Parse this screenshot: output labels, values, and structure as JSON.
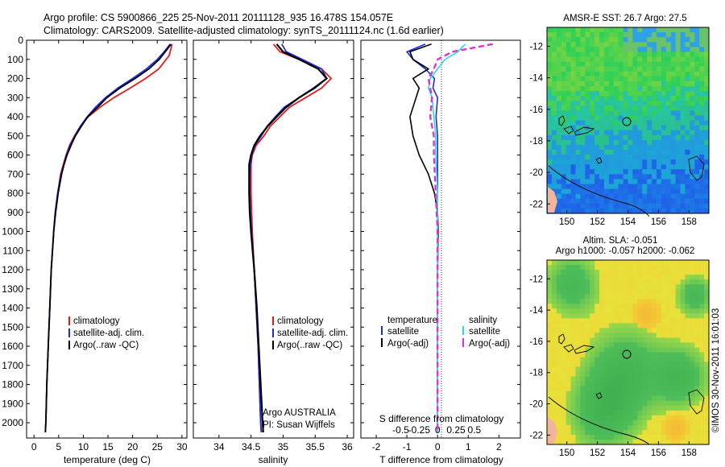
{
  "header": {
    "line1": "Argo profile: CS 5900866_225 25-Nov-2011 20111128_935 16.478S 154.057E",
    "line2": "Climatology: CARS2009. Satellite-adjusted climatology: synTS_20111124.nc (1.6d earlier)"
  },
  "colors": {
    "climatology": "#e41a1c",
    "satellite": "#1f2bd6",
    "argo": "#000000",
    "sal_satellite": "#22dfe6",
    "sal_argo": "#e52fd6"
  },
  "chart_data": [
    {
      "type": "line",
      "id": "temperature",
      "xlabel": "temperature (deg C)",
      "ylabel": "",
      "xlim": [
        -1.5,
        31
      ],
      "ylim": [
        2080,
        0
      ],
      "x_ticks": [
        "0",
        "5",
        "10",
        "15",
        "20",
        "25",
        "30"
      ],
      "x_tick_values": [
        0,
        5,
        10,
        15,
        20,
        25,
        30
      ],
      "y_ticks": [
        "0",
        "100",
        "200",
        "300",
        "400",
        "500",
        "600",
        "700",
        "800",
        "900",
        "1000",
        "1100",
        "1200",
        "1300",
        "1400",
        "1500",
        "1600",
        "1700",
        "1800",
        "1900",
        "2000"
      ],
      "y_tick_values": [
        0,
        100,
        200,
        300,
        400,
        500,
        600,
        700,
        800,
        900,
        1000,
        1100,
        1200,
        1300,
        1400,
        1500,
        1600,
        1700,
        1800,
        1900,
        2000
      ],
      "legend": [
        "climatology",
        "satellite-adj. clim.",
        "Argo(..raw -QC)"
      ],
      "legend_position": "lower-middle",
      "series": [
        {
          "name": "climatology",
          "color": "climatology",
          "depth": [
            20,
            80,
            150,
            200,
            250,
            300,
            350,
            400,
            450,
            500,
            550,
            600,
            700,
            800,
            900,
            1000,
            1200,
            1400,
            1600,
            1800,
            2000,
            2050
          ],
          "values": [
            28,
            27.4,
            25.3,
            22.6,
            19.5,
            16.2,
            13.4,
            11.0,
            9.4,
            8.2,
            7.2,
            6.5,
            5.4,
            4.8,
            4.3,
            4.0,
            3.5,
            3.2,
            2.9,
            2.6,
            2.4,
            2.3
          ]
        },
        {
          "name": "satellite-adj. clim.",
          "color": "satellite",
          "depth": [
            20,
            60,
            100,
            150,
            200,
            250,
            300,
            350,
            400,
            450,
            500,
            550,
            600,
            700,
            800,
            900,
            1000,
            1200,
            1400,
            1600,
            1800,
            2000,
            2050
          ],
          "values": [
            27.6,
            26.4,
            25.0,
            22.8,
            20.0,
            17.0,
            14.5,
            12.5,
            10.8,
            9.4,
            8.3,
            7.3,
            6.6,
            5.5,
            4.8,
            4.3,
            4.0,
            3.5,
            3.2,
            2.9,
            2.6,
            2.4,
            2.3
          ]
        },
        {
          "name": "Argo(..raw -QC)",
          "color": "argo",
          "depth": [
            20,
            60,
            100,
            150,
            200,
            250,
            300,
            350,
            400,
            450,
            500,
            550,
            600,
            650,
            700,
            800,
            900,
            1000,
            1200,
            1400,
            1600,
            1800,
            2000,
            2050
          ],
          "values": [
            27.8,
            26.6,
            25.4,
            23.3,
            20.5,
            17.4,
            14.8,
            12.9,
            10.9,
            9.6,
            8.4,
            7.5,
            6.7,
            6.1,
            5.6,
            4.9,
            4.4,
            4.0,
            3.5,
            3.2,
            2.9,
            2.6,
            2.4,
            2.3
          ]
        }
      ]
    },
    {
      "type": "line",
      "id": "salinity",
      "xlabel": "salinity",
      "ylabel": "",
      "xlim": [
        33.6,
        36.1
      ],
      "ylim": [
        2080,
        0
      ],
      "x_ticks": [
        "34",
        "34.5",
        "35",
        "35.5",
        "36"
      ],
      "x_tick_values": [
        34,
        34.5,
        35,
        35.5,
        36
      ],
      "legend": [
        "climatology",
        "satellite-adj. clim.",
        "Argo(..raw -QC)"
      ],
      "legend_position": "lower-middle",
      "annotation": [
        "Argo AUSTRALIA",
        "PI: Susan Wijffels"
      ],
      "series": [
        {
          "name": "climatology",
          "color": "climatology",
          "depth": [
            20,
            60,
            100,
            150,
            200,
            250,
            300,
            350,
            400,
            450,
            500,
            550,
            600,
            650,
            700,
            800,
            900,
            1000,
            1200,
            1400,
            1600,
            1800,
            2000,
            2050
          ],
          "values": [
            34.85,
            34.95,
            35.25,
            35.6,
            35.75,
            35.6,
            35.35,
            35.1,
            34.95,
            34.8,
            34.7,
            34.58,
            34.52,
            34.5,
            34.5,
            34.5,
            34.51,
            34.52,
            34.55,
            34.58,
            34.61,
            34.63,
            34.65,
            34.66
          ]
        },
        {
          "name": "satellite-adj. clim.",
          "color": "satellite",
          "depth": [
            20,
            60,
            100,
            150,
            200,
            250,
            300,
            350,
            400,
            450,
            500,
            550,
            600,
            650,
            700,
            800,
            900,
            1000,
            1200,
            1400,
            1600,
            1800,
            2000,
            2050
          ],
          "values": [
            34.98,
            35.05,
            35.3,
            35.6,
            35.68,
            35.5,
            35.25,
            35.02,
            34.88,
            34.75,
            34.66,
            34.56,
            34.51,
            34.49,
            34.48,
            34.48,
            34.49,
            34.51,
            34.55,
            34.58,
            34.61,
            34.63,
            34.65,
            34.66
          ]
        },
        {
          "name": "Argo(..raw -QC)",
          "color": "argo",
          "depth": [
            20,
            60,
            100,
            150,
            200,
            250,
            300,
            350,
            400,
            450,
            500,
            550,
            600,
            650,
            700,
            800,
            900,
            1000,
            1200,
            1400,
            1600,
            1800,
            2000,
            2050
          ],
          "values": [
            34.9,
            35.0,
            35.25,
            35.55,
            35.68,
            35.48,
            35.25,
            35.05,
            34.9,
            34.76,
            34.64,
            34.55,
            34.5,
            34.47,
            34.47,
            34.47,
            34.48,
            34.5,
            34.55,
            34.59,
            34.62,
            34.65,
            34.68,
            34.69
          ]
        }
      ]
    },
    {
      "type": "line",
      "id": "differences",
      "xlabel": "T difference from climatology",
      "xlabel_top": "S difference from climatology",
      "xlim": [
        -2.5,
        2.7
      ],
      "ylim": [
        2080,
        0
      ],
      "x_ticks": [
        "-2",
        "-1",
        "0",
        "1",
        "2"
      ],
      "x_tick_values": [
        -2,
        -1,
        0,
        1,
        2
      ],
      "s_ticks": [
        "-0.5",
        "-0.25",
        "0",
        "0.25",
        "0.5"
      ],
      "legend_t_title": "temperature",
      "legend_s_title": "salinity",
      "legend": [
        "satellite",
        "Argo(-adj)",
        "satellite",
        "Argo(-adj)"
      ],
      "series": [
        {
          "name": "T satellite",
          "color": "satellite",
          "depth": [
            20,
            60,
            100,
            150,
            200,
            250,
            300,
            400,
            500,
            600,
            800,
            1000,
            1200,
            1500,
            1900,
            2050
          ],
          "values": [
            -0.4,
            -1.0,
            -0.8,
            -0.4,
            -0.1,
            -0.15,
            0.0,
            -0.05,
            0.0,
            0.0,
            0.0,
            0.0,
            0.0,
            0.0,
            0.0,
            0.0
          ]
        },
        {
          "name": "T Argo(-adj)",
          "color": "argo",
          "depth": [
            20,
            60,
            100,
            150,
            200,
            250,
            300,
            400,
            500,
            600,
            700,
            800,
            900,
            1000,
            1200,
            1500,
            1900,
            2050
          ],
          "values": [
            -0.2,
            -0.9,
            -0.8,
            -0.3,
            -0.8,
            -0.6,
            -0.7,
            -0.9,
            -0.8,
            -0.6,
            -0.3,
            -0.1,
            0.0,
            0.02,
            0.0,
            0.0,
            0.0,
            0.0
          ]
        },
        {
          "name": "S satellite",
          "color": "sal_satellite",
          "depth": [
            20,
            60,
            100,
            150,
            200,
            250,
            300,
            400,
            500,
            600,
            800,
            1000,
            1500,
            2050
          ],
          "values": [
            0.15,
            0.11,
            0.04,
            0.0,
            -0.04,
            -0.05,
            -0.03,
            -0.02,
            -0.01,
            -0.01,
            0.0,
            0.0,
            0.0,
            0.0
          ]
        },
        {
          "name": "S Argo(-adj)",
          "color": "sal_argo",
          "depth": [
            20,
            60,
            100,
            150,
            200,
            250,
            300,
            400,
            500,
            600,
            800,
            1000,
            1500,
            2050
          ],
          "values": [
            0.3,
            0.08,
            0.0,
            -0.02,
            -0.05,
            -0.04,
            -0.03,
            -0.04,
            -0.02,
            -0.02,
            -0.01,
            0.0,
            0.0,
            0.0
          ]
        }
      ]
    },
    {
      "type": "heatmap",
      "id": "sst_map",
      "title": "AMSR-E SST: 26.7  Argo: 27.5",
      "x_ticks": [
        "150",
        "152",
        "154",
        "156",
        "158"
      ],
      "y_ticks": [
        "-12",
        "-14",
        "-16",
        "-18",
        "-20",
        "-22"
      ],
      "xlim": [
        148.7,
        159.3
      ],
      "ylim": [
        -22.6,
        -10.8
      ],
      "marker": {
        "lon": 154.057,
        "lat": -16.478
      }
    },
    {
      "type": "heatmap",
      "id": "sla_map",
      "title": "Altim. SLA: -0.051",
      "subtitle": "Argo h1000: -0.057 h2000: -0.062",
      "x_ticks": [
        "150",
        "152",
        "154",
        "156",
        "158"
      ],
      "y_ticks": [
        "-12",
        "-14",
        "-16",
        "-18",
        "-20",
        "-22"
      ],
      "xlim": [
        148.7,
        159.3
      ],
      "ylim": [
        -22.6,
        -10.8
      ],
      "marker": {
        "lon": 154.057,
        "lat": -16.478
      }
    }
  ],
  "footer": {
    "stamp": "©IMOS 30-Nov-2011 16:01:03"
  }
}
